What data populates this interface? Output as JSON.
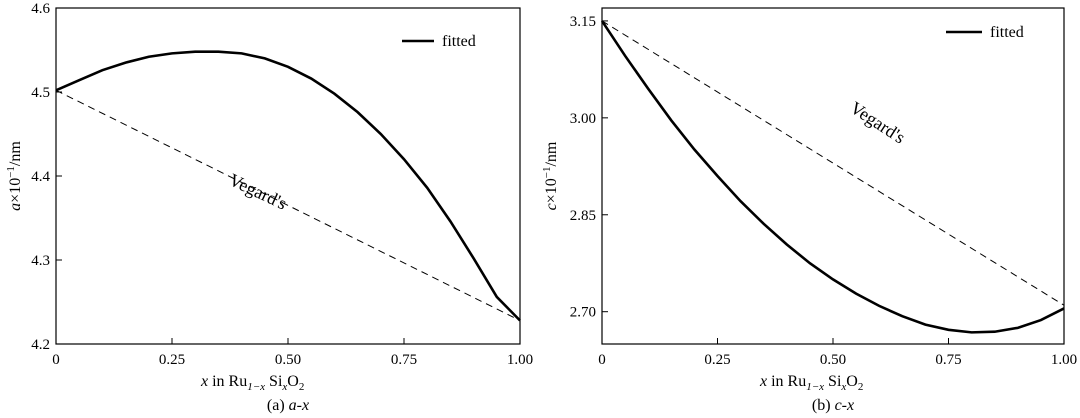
{
  "chart_data": [
    {
      "type": "line",
      "caption_prefix": "(a)",
      "caption_expr": "a-x",
      "xlabel_var": "x",
      "xlabel_text": "in Ru",
      "xlabel_sub1": "1−x",
      "xlabel_mid": "Si",
      "xlabel_sub2": "x",
      "xlabel_end": "O",
      "xlabel_sub3": "2",
      "ylabel_var": "a",
      "ylabel_text": "×10",
      "ylabel_sup": "−1",
      "ylabel_unit": "/nm",
      "xlim": [
        0,
        1.0
      ],
      "ylim": [
        4.2,
        4.6
      ],
      "x_ticks": [
        0,
        0.25,
        0.5,
        0.75,
        1.0
      ],
      "x_tick_labels": [
        "0",
        "0.25",
        "0.50",
        "0.75",
        "1.00"
      ],
      "y_ticks": [
        4.2,
        4.3,
        4.4,
        4.5,
        4.6
      ],
      "y_tick_labels": [
        "4.2",
        "4.3",
        "4.4",
        "4.5",
        "4.6"
      ],
      "legend": {
        "placement": "top-right",
        "label": "fitted"
      },
      "series": [
        {
          "name": "fitted",
          "style": "solid",
          "x": [
            0,
            0.05,
            0.1,
            0.15,
            0.2,
            0.25,
            0.3,
            0.35,
            0.4,
            0.45,
            0.5,
            0.55,
            0.6,
            0.65,
            0.7,
            0.75,
            0.8,
            0.85,
            0.9,
            0.95,
            1.0
          ],
          "y": [
            4.502,
            4.514,
            4.526,
            4.535,
            4.542,
            4.546,
            4.548,
            4.548,
            4.546,
            4.54,
            4.53,
            4.516,
            4.498,
            4.476,
            4.45,
            4.42,
            4.386,
            4.346,
            4.302,
            4.256,
            4.228
          ]
        },
        {
          "name": "Vegard's",
          "style": "dashed",
          "x": [
            0,
            1.0
          ],
          "y": [
            4.502,
            4.228
          ]
        }
      ],
      "annotations": [
        {
          "text": "Vegard's",
          "x": 0.43,
          "y": 4.375,
          "angle_deg": 25
        }
      ]
    },
    {
      "type": "line",
      "caption_prefix": "(b)",
      "caption_expr": "c-x",
      "xlabel_var": "x",
      "xlabel_text": "in Ru",
      "xlabel_sub1": "1−x",
      "xlabel_mid": "Si",
      "xlabel_sub2": "x",
      "xlabel_end": "O",
      "xlabel_sub3": "2",
      "ylabel_var": "c",
      "ylabel_text": "×10",
      "ylabel_sup": "−1",
      "ylabel_unit": "/nm",
      "xlim": [
        0,
        1.0
      ],
      "ylim": [
        2.65,
        3.17
      ],
      "x_ticks": [
        0,
        0.25,
        0.5,
        0.75,
        1.0
      ],
      "x_tick_labels": [
        "0",
        "0.25",
        "0.50",
        "0.75",
        "1.00"
      ],
      "y_ticks": [
        2.7,
        2.85,
        3.0,
        3.15
      ],
      "y_tick_labels": [
        "2.70",
        "2.85",
        "3.00",
        "3.15"
      ],
      "legend": {
        "placement": "top-right",
        "label": "fitted"
      },
      "series": [
        {
          "name": "fitted",
          "style": "solid",
          "x": [
            0,
            0.05,
            0.1,
            0.15,
            0.2,
            0.25,
            0.3,
            0.35,
            0.4,
            0.45,
            0.5,
            0.55,
            0.6,
            0.65,
            0.7,
            0.75,
            0.8,
            0.85,
            0.9,
            0.95,
            1.0
          ],
          "y": [
            3.15,
            3.096,
            3.045,
            2.996,
            2.951,
            2.91,
            2.871,
            2.836,
            2.804,
            2.775,
            2.75,
            2.728,
            2.709,
            2.693,
            2.68,
            2.672,
            2.668,
            2.669,
            2.675,
            2.687,
            2.705
          ]
        },
        {
          "name": "Vegard's",
          "style": "dashed",
          "x": [
            0,
            1.0
          ],
          "y": [
            3.15,
            2.71
          ]
        }
      ],
      "annotations": [
        {
          "text": "Vegard's",
          "x": 0.59,
          "y": 2.985,
          "angle_deg": 33
        }
      ]
    }
  ]
}
